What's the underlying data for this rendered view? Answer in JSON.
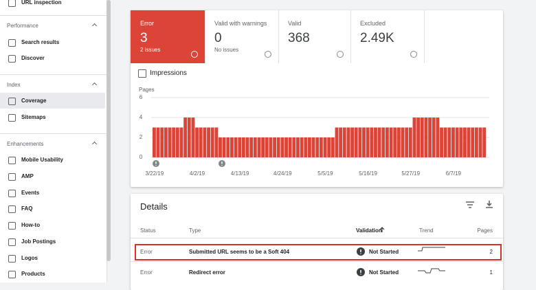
{
  "sidebar": {
    "top_item": "URL inspection",
    "sections": [
      {
        "title": "Performance",
        "items": [
          "Search results",
          "Discover"
        ]
      },
      {
        "title": "Index",
        "items": [
          "Coverage",
          "Sitemaps"
        ],
        "selected": 0
      },
      {
        "title": "Enhancements",
        "items": [
          "Mobile Usability",
          "AMP",
          "Events",
          "FAQ",
          "How-to",
          "Job Postings",
          "Logos",
          "Products"
        ]
      }
    ]
  },
  "tiles": [
    {
      "label": "Error",
      "value": "3",
      "sub": "2 issues"
    },
    {
      "label": "Valid with warnings",
      "value": "0",
      "sub": "No issues"
    },
    {
      "label": "Valid",
      "value": "368"
    },
    {
      "label": "Excluded",
      "value": "2.49K"
    }
  ],
  "impressions_label": "Impressions",
  "chart_data": {
    "type": "bar",
    "y_label": "Pages",
    "color": "#db4437",
    "ylim": [
      0,
      6
    ],
    "yticks": [
      0,
      2,
      4,
      6
    ],
    "grid": true,
    "categories": [
      "3/22/19",
      null,
      null,
      null,
      null,
      null,
      null,
      null,
      null,
      null,
      null,
      "4/2/19",
      null,
      null,
      null,
      null,
      null,
      null,
      null,
      null,
      null,
      null,
      "4/13/19",
      null,
      null,
      null,
      null,
      null,
      null,
      null,
      null,
      null,
      null,
      "4/24/19",
      null,
      null,
      null,
      null,
      null,
      null,
      null,
      null,
      null,
      null,
      "5/5/19",
      null,
      null,
      null,
      null,
      null,
      null,
      null,
      null,
      null,
      null,
      "5/16/19",
      null,
      null,
      null,
      null,
      null,
      null,
      null,
      null,
      null,
      null,
      "5/27/19",
      null,
      null,
      null,
      null,
      null,
      null,
      null,
      null,
      null,
      null,
      "6/7/19",
      null,
      null,
      null,
      null,
      null,
      null,
      null,
      null
    ],
    "values": [
      3,
      3,
      3,
      3,
      3,
      3,
      3,
      3,
      4,
      4,
      4,
      3,
      3,
      3,
      3,
      3,
      3,
      2,
      2,
      2,
      2,
      2,
      2,
      2,
      2,
      2,
      2,
      2,
      2,
      2,
      2,
      2,
      2,
      2,
      2,
      2,
      2,
      2,
      2,
      2,
      2,
      2,
      2,
      2,
      2,
      2,
      2,
      3,
      3,
      3,
      3,
      3,
      3,
      3,
      3,
      3,
      3,
      3,
      3,
      3,
      3,
      3,
      3,
      3,
      3,
      3,
      3,
      4,
      4,
      4,
      4,
      4,
      4,
      4,
      3,
      3,
      3,
      3,
      3,
      3,
      3,
      3,
      3,
      3,
      3,
      3
    ]
  },
  "details": {
    "title": "Details",
    "columns": [
      "Status",
      "Type",
      "Validation",
      "Trend",
      "Pages"
    ],
    "rows": [
      [
        "Error",
        "Submitted URL seems to be a Soft 404",
        "Not Started",
        2
      ],
      [
        "Error",
        "Redirect error",
        "Not Started",
        1
      ]
    ]
  }
}
